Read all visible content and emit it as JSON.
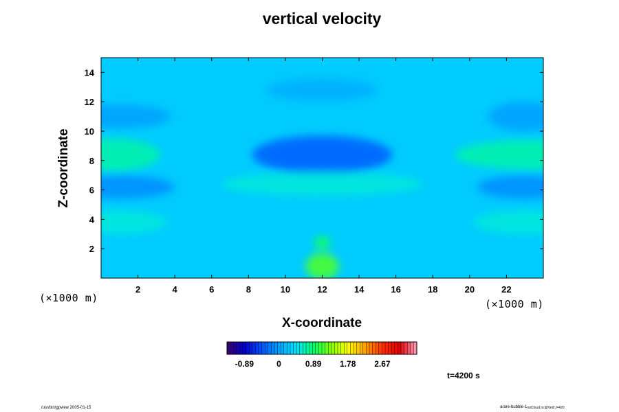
{
  "chart_data": {
    "type": "heatmap",
    "title": "vertical velocity",
    "xlabel": "X-coordinate",
    "ylabel": "Z-coordinate",
    "x_unit_label_left": "(×1000 m)",
    "x_unit_label_right": "(×1000 m)",
    "xlim": [
      0,
      24
    ],
    "ylim": [
      0,
      15
    ],
    "xticks": [
      2,
      4,
      6,
      8,
      10,
      12,
      14,
      16,
      18,
      20,
      22
    ],
    "yticks": [
      2,
      4,
      6,
      8,
      10,
      12,
      14
    ],
    "colorbar": {
      "tick_labels": [
        "-0.89",
        "0",
        "0.89",
        "1.78",
        "2.67"
      ],
      "tick_values": [
        -0.89,
        0,
        0.89,
        1.78,
        2.67
      ],
      "range": [
        -1.34,
        3.56
      ],
      "colormap": [
        "#3a006e",
        "#0000c8",
        "#0050ff",
        "#00a0ff",
        "#00e0ff",
        "#00ff70",
        "#80ff00",
        "#ffff00",
        "#ffa000",
        "#ff3000",
        "#e00000",
        "#ffa0c0"
      ]
    },
    "base_value": 0.3,
    "features": [
      {
        "x": 12,
        "z": 0.8,
        "value": 1.15
      },
      {
        "x": 12,
        "z": 2.4,
        "value": 0.95
      },
      {
        "x": 12,
        "z": 8.4,
        "value": -0.35
      },
      {
        "x": 0.6,
        "z": 8.4,
        "value": 0.7
      },
      {
        "x": 23.4,
        "z": 8.4,
        "value": 0.7
      },
      {
        "x": 12,
        "z": 6.4,
        "value": 0.55
      },
      {
        "x": 12,
        "z": 12.8,
        "value": 0.1
      },
      {
        "x": 1,
        "z": 6.2,
        "value": -0.1
      },
      {
        "x": 23,
        "z": 6.2,
        "value": -0.1
      },
      {
        "x": 1,
        "z": 3.8,
        "value": 0.55
      },
      {
        "x": 23,
        "z": 3.8,
        "value": 0.55
      },
      {
        "x": 1,
        "z": 11,
        "value": 0.0
      },
      {
        "x": 23,
        "z": 11,
        "value": 0.0
      }
    ]
  },
  "time_label": "t=4200 s",
  "footer_left": "/usr/bin/gpview 2005-01-15",
  "footer_right_main": "arare-bubble-1",
  "footer_right_sub": "noCloud.nc@Vel2,t=420"
}
